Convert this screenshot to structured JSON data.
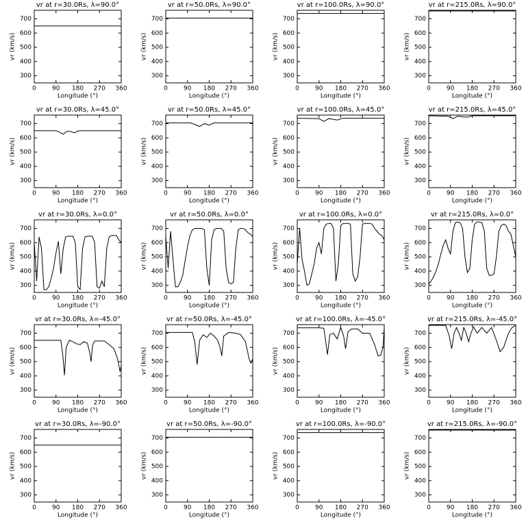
{
  "chart_data": [
    {
      "type": "line",
      "title": "vr at r=30.0Rs, λ=90.0°",
      "x": [
        0,
        360
      ],
      "values": [
        650,
        650
      ],
      "color": "#000000",
      "xlabel": "Longitude (°)",
      "ylabel": "vr (km/s)",
      "xlim": [
        0,
        360
      ],
      "ylim": [
        250,
        760
      ],
      "xticks": [
        0,
        90,
        180,
        270,
        360
      ],
      "yticks": [
        300,
        400,
        500,
        600,
        700
      ]
    },
    {
      "type": "line",
      "title": "vr at r=50.0Rs, λ=90.0°",
      "x": [
        0,
        360
      ],
      "values": [
        705,
        705
      ],
      "color": "#000000",
      "xlabel": "Longitude (°)",
      "ylabel": "vr (km/s)",
      "xlim": [
        0,
        360
      ],
      "ylim": [
        250,
        760
      ],
      "xticks": [
        0,
        90,
        180,
        270,
        360
      ],
      "yticks": [
        300,
        400,
        500,
        600,
        700
      ]
    },
    {
      "type": "line",
      "title": "vr at r=100.0Rs, λ=90.0°",
      "x": [
        0,
        360
      ],
      "values": [
        738,
        738
      ],
      "color": "#000000",
      "xlabel": "Longitude (°)",
      "ylabel": "vr (km/s)",
      "xlim": [
        0,
        360
      ],
      "ylim": [
        250,
        760
      ],
      "xticks": [
        0,
        90,
        180,
        270,
        360
      ],
      "yticks": [
        300,
        400,
        500,
        600,
        700
      ]
    },
    {
      "type": "line",
      "title": "vr at r=215.0Rs, λ=90.0°",
      "x": [
        0,
        360
      ],
      "values": [
        755,
        755
      ],
      "color": "#000000",
      "xlabel": "Longitude (°)",
      "ylabel": "vr (km/s)",
      "xlim": [
        0,
        360
      ],
      "ylim": [
        250,
        760
      ],
      "xticks": [
        0,
        90,
        180,
        270,
        360
      ],
      "yticks": [
        300,
        400,
        500,
        600,
        700
      ]
    },
    {
      "type": "line",
      "title": "vr at r=30.0Rs, λ=45.0°",
      "x": [
        0,
        90,
        105,
        120,
        135,
        150,
        165,
        180,
        195,
        360
      ],
      "values": [
        650,
        650,
        640,
        625,
        645,
        645,
        635,
        648,
        650,
        650
      ],
      "color": "#000000",
      "xlabel": "Longitude (°)",
      "ylabel": "vr (km/s)",
      "xlim": [
        0,
        360
      ],
      "ylim": [
        250,
        760
      ],
      "xticks": [
        0,
        90,
        180,
        270,
        360
      ],
      "yticks": [
        300,
        400,
        500,
        600,
        700
      ]
    },
    {
      "type": "line",
      "title": "vr at r=50.0Rs, λ=45.0°",
      "x": [
        0,
        100,
        120,
        140,
        160,
        180,
        200,
        360
      ],
      "values": [
        705,
        705,
        695,
        680,
        700,
        690,
        705,
        705
      ],
      "color": "#000000",
      "xlabel": "Longitude (°)",
      "ylabel": "vr (km/s)",
      "xlim": [
        0,
        360
      ],
      "ylim": [
        250,
        760
      ],
      "xticks": [
        0,
        90,
        180,
        270,
        360
      ],
      "yticks": [
        300,
        400,
        500,
        600,
        700
      ]
    },
    {
      "type": "line",
      "title": "vr at r=100.0Rs, λ=45.0°",
      "x": [
        0,
        90,
        110,
        130,
        150,
        165,
        190,
        360
      ],
      "values": [
        738,
        735,
        715,
        735,
        730,
        725,
        738,
        738
      ],
      "color": "#000000",
      "xlabel": "Longitude (°)",
      "ylabel": "vr (km/s)",
      "xlim": [
        0,
        360
      ],
      "ylim": [
        250,
        760
      ],
      "xticks": [
        0,
        90,
        180,
        270,
        360
      ],
      "yticks": [
        300,
        400,
        500,
        600,
        700
      ]
    },
    {
      "type": "line",
      "title": "vr at r=215.0Rs, λ=45.0°",
      "x": [
        0,
        80,
        100,
        120,
        140,
        160,
        180,
        360
      ],
      "values": [
        755,
        752,
        735,
        752,
        748,
        745,
        755,
        755
      ],
      "color": "#000000",
      "xlabel": "Longitude (°)",
      "ylabel": "vr (km/s)",
      "xlim": [
        0,
        360
      ],
      "ylim": [
        250,
        760
      ],
      "xticks": [
        0,
        90,
        180,
        270,
        360
      ],
      "yticks": [
        300,
        400,
        500,
        600,
        700
      ]
    },
    {
      "type": "line",
      "title": "vr at r=30.0Rs, λ=0.0°",
      "x": [
        0,
        10,
        20,
        30,
        40,
        50,
        60,
        70,
        80,
        90,
        100,
        110,
        120,
        130,
        140,
        150,
        160,
        170,
        180,
        190,
        200,
        210,
        220,
        230,
        240,
        250,
        260,
        270,
        280,
        290,
        300,
        310,
        320,
        330,
        340,
        350,
        360
      ],
      "values": [
        600,
        330,
        640,
        560,
        270,
        270,
        290,
        350,
        420,
        530,
        610,
        380,
        560,
        640,
        645,
        645,
        645,
        600,
        290,
        270,
        560,
        640,
        645,
        645,
        645,
        600,
        290,
        280,
        330,
        290,
        560,
        640,
        650,
        650,
        650,
        620,
        600
      ],
      "color": "#000000",
      "xlabel": "Longitude (°)",
      "ylabel": "vr (km/s)",
      "xlim": [
        0,
        360
      ],
      "ylim": [
        250,
        760
      ],
      "xticks": [
        0,
        90,
        180,
        270,
        360
      ],
      "yticks": [
        300,
        400,
        500,
        600,
        700
      ]
    },
    {
      "type": "line",
      "title": "vr at r=50.0Rs, λ=0.0°",
      "x": [
        0,
        10,
        20,
        30,
        40,
        50,
        60,
        70,
        80,
        90,
        100,
        110,
        120,
        130,
        140,
        150,
        160,
        170,
        180,
        190,
        200,
        210,
        220,
        230,
        240,
        250,
        260,
        270,
        280,
        290,
        300,
        310,
        320,
        330,
        340,
        350,
        360
      ],
      "values": [
        640,
        420,
        680,
        480,
        290,
        290,
        320,
        370,
        470,
        570,
        650,
        690,
        700,
        700,
        700,
        700,
        690,
        420,
        300,
        620,
        690,
        700,
        700,
        700,
        680,
        420,
        320,
        310,
        320,
        560,
        690,
        700,
        700,
        690,
        670,
        660,
        640
      ],
      "color": "#000000",
      "xlabel": "Longitude (°)",
      "ylabel": "vr (km/s)",
      "xlim": [
        0,
        360
      ],
      "ylim": [
        250,
        760
      ],
      "xticks": [
        0,
        90,
        180,
        270,
        360
      ],
      "yticks": [
        300,
        400,
        500,
        600,
        700
      ]
    },
    {
      "type": "line",
      "title": "vr at r=100.0Rs, λ=0.0°",
      "x": [
        0,
        10,
        20,
        30,
        40,
        50,
        60,
        70,
        80,
        90,
        100,
        110,
        120,
        130,
        140,
        150,
        160,
        170,
        180,
        190,
        200,
        210,
        220,
        230,
        240,
        250,
        260,
        270,
        280,
        290,
        300,
        310,
        320,
        330,
        340,
        350,
        360
      ],
      "values": [
        450,
        700,
        480,
        400,
        300,
        310,
        380,
        450,
        560,
        600,
        520,
        700,
        730,
        735,
        735,
        700,
        330,
        450,
        720,
        735,
        735,
        735,
        730,
        380,
        330,
        360,
        500,
        730,
        735,
        735,
        735,
        730,
        700,
        680,
        660,
        650,
        620
      ],
      "color": "#000000",
      "xlabel": "Longitude (°)",
      "ylabel": "vr (km/s)",
      "xlim": [
        0,
        360
      ],
      "ylim": [
        250,
        760
      ],
      "xticks": [
        0,
        90,
        180,
        270,
        360
      ],
      "yticks": [
        300,
        400,
        500,
        600,
        700
      ]
    },
    {
      "type": "line",
      "title": "vr at r=215.0Rs, λ=0.0°",
      "x": [
        0,
        10,
        20,
        30,
        40,
        50,
        60,
        70,
        80,
        90,
        100,
        110,
        120,
        130,
        140,
        150,
        160,
        170,
        180,
        190,
        200,
        210,
        220,
        230,
        240,
        250,
        260,
        270,
        280,
        290,
        300,
        310,
        320,
        330,
        340,
        350,
        360
      ],
      "values": [
        310,
        330,
        360,
        400,
        450,
        520,
        580,
        620,
        560,
        520,
        680,
        740,
        745,
        740,
        700,
        500,
        390,
        420,
        620,
        730,
        745,
        745,
        740,
        680,
        420,
        370,
        370,
        380,
        500,
        680,
        720,
        730,
        720,
        680,
        660,
        580,
        500
      ],
      "color": "#000000",
      "xlabel": "Longitude (°)",
      "ylabel": "vr (km/s)",
      "xlim": [
        0,
        360
      ],
      "ylim": [
        250,
        760
      ],
      "xticks": [
        0,
        90,
        180,
        270,
        360
      ],
      "yticks": [
        300,
        400,
        500,
        600,
        700
      ]
    },
    {
      "type": "line",
      "title": "vr at r=30.0Rs, λ=-45.0°",
      "x": [
        0,
        110,
        118,
        125,
        132,
        145,
        160,
        175,
        190,
        205,
        220,
        230,
        235,
        242,
        250,
        290,
        310,
        330,
        345,
        355,
        360
      ],
      "values": [
        650,
        650,
        550,
        405,
        600,
        650,
        640,
        625,
        620,
        640,
        630,
        560,
        500,
        620,
        645,
        645,
        620,
        590,
        520,
        430,
        470
      ],
      "color": "#000000",
      "xlabel": "Longitude (°)",
      "ylabel": "vr (km/s)",
      "xlim": [
        0,
        360
      ],
      "ylim": [
        250,
        760
      ],
      "xticks": [
        0,
        90,
        180,
        270,
        360
      ],
      "yticks": [
        300,
        400,
        500,
        600,
        700
      ]
    },
    {
      "type": "line",
      "title": "vr at r=50.0Rs, λ=-45.0°",
      "x": [
        0,
        110,
        120,
        130,
        140,
        155,
        170,
        185,
        200,
        215,
        225,
        232,
        240,
        260,
        290,
        310,
        330,
        345,
        352,
        360
      ],
      "values": [
        705,
        705,
        640,
        480,
        650,
        690,
        670,
        700,
        680,
        650,
        600,
        540,
        680,
        705,
        700,
        690,
        640,
        520,
        490,
        520
      ],
      "color": "#000000",
      "xlabel": "Longitude (°)",
      "ylabel": "vr (km/s)",
      "xlim": [
        0,
        360
      ],
      "ylim": [
        250,
        760
      ],
      "xticks": [
        0,
        90,
        180,
        270,
        360
      ],
      "yticks": [
        300,
        400,
        500,
        600,
        700
      ]
    },
    {
      "type": "line",
      "title": "vr at r=100.0Rs, λ=-45.0°",
      "x": [
        0,
        90,
        110,
        118,
        125,
        135,
        150,
        165,
        180,
        192,
        200,
        210,
        225,
        250,
        270,
        300,
        320,
        335,
        345,
        355,
        360
      ],
      "values": [
        738,
        738,
        735,
        640,
        550,
        690,
        700,
        660,
        740,
        680,
        590,
        710,
        730,
        730,
        700,
        700,
        620,
        540,
        545,
        600,
        740
      ],
      "color": "#000000",
      "xlabel": "Longitude (°)",
      "ylabel": "vr (km/s)",
      "xlim": [
        0,
        360
      ],
      "ylim": [
        250,
        760
      ],
      "xticks": [
        0,
        90,
        180,
        270,
        360
      ],
      "yticks": [
        300,
        400,
        500,
        600,
        700
      ]
    },
    {
      "type": "line",
      "title": "vr at r=215.0Rs, λ=-45.0°",
      "x": [
        0,
        70,
        85,
        95,
        105,
        115,
        125,
        135,
        145,
        155,
        165,
        175,
        185,
        200,
        220,
        240,
        260,
        280,
        295,
        310,
        330,
        345,
        360
      ],
      "values": [
        755,
        755,
        680,
        590,
        700,
        740,
        700,
        650,
        740,
        700,
        640,
        700,
        745,
        700,
        740,
        700,
        740,
        650,
        570,
        600,
        700,
        740,
        755
      ],
      "color": "#000000",
      "xlabel": "Longitude (°)",
      "ylabel": "vr (km/s)",
      "xlim": [
        0,
        360
      ],
      "ylim": [
        250,
        760
      ],
      "xticks": [
        0,
        90,
        180,
        270,
        360
      ],
      "yticks": [
        300,
        400,
        500,
        600,
        700
      ]
    },
    {
      "type": "line",
      "title": "vr at r=30.0Rs, λ=-90.0°",
      "x": [
        0,
        360
      ],
      "values": [
        650,
        650
      ],
      "color": "#000000",
      "xlabel": "Longitude (°)",
      "ylabel": "vr (km/s)",
      "xlim": [
        0,
        360
      ],
      "ylim": [
        250,
        760
      ],
      "xticks": [
        0,
        90,
        180,
        270,
        360
      ],
      "yticks": [
        300,
        400,
        500,
        600,
        700
      ]
    },
    {
      "type": "line",
      "title": "vr at r=50.0Rs, λ=-90.0°",
      "x": [
        0,
        360
      ],
      "values": [
        705,
        705
      ],
      "color": "#000000",
      "xlabel": "Longitude (°)",
      "ylabel": "vr (km/s)",
      "xlim": [
        0,
        360
      ],
      "ylim": [
        250,
        760
      ],
      "xticks": [
        0,
        90,
        180,
        270,
        360
      ],
      "yticks": [
        300,
        400,
        500,
        600,
        700
      ]
    },
    {
      "type": "line",
      "title": "vr at r=100.0Rs, λ=-90.0°",
      "x": [
        0,
        360
      ],
      "values": [
        738,
        738
      ],
      "color": "#000000",
      "xlabel": "Longitude (°)",
      "ylabel": "vr (km/s)",
      "xlim": [
        0,
        360
      ],
      "ylim": [
        250,
        760
      ],
      "xticks": [
        0,
        90,
        180,
        270,
        360
      ],
      "yticks": [
        300,
        400,
        500,
        600,
        700
      ]
    },
    {
      "type": "line",
      "title": "vr at r=215.0Rs, λ=-90.0°",
      "x": [
        0,
        360
      ],
      "values": [
        755,
        755
      ],
      "color": "#000000",
      "xlabel": "Longitude (°)",
      "ylabel": "vr (km/s)",
      "xlim": [
        0,
        360
      ],
      "ylim": [
        250,
        760
      ],
      "xticks": [
        0,
        90,
        180,
        270,
        360
      ],
      "yticks": [
        300,
        400,
        500,
        600,
        700
      ]
    }
  ]
}
